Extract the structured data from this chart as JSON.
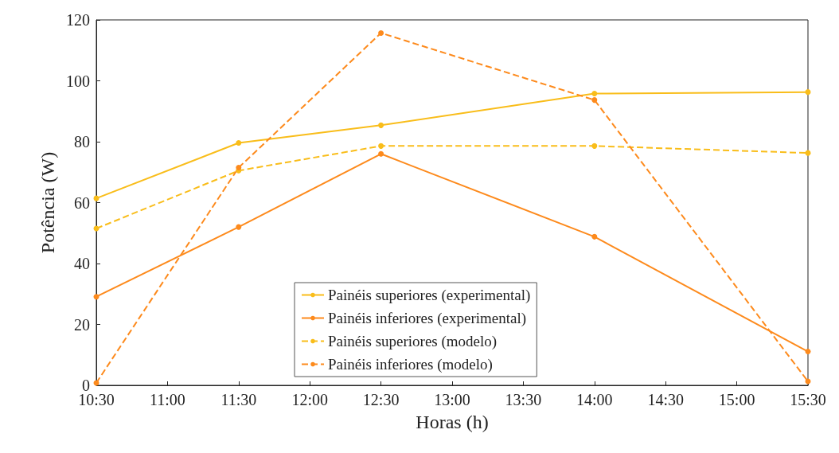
{
  "chart_data": {
    "type": "line",
    "xlabel": "Horas (h)",
    "ylabel": "Potência (W)",
    "x": [
      10.5,
      11.5,
      12.5,
      14,
      15.5
    ],
    "series": [
      {
        "name": "Painéis superiores (experimental)",
        "color": "#f9bd1a",
        "line_style": "solid",
        "values": [
          61.4,
          79.6,
          85.4,
          95.8,
          96.3
        ]
      },
      {
        "name": "Painéis inferiores (experimental)",
        "color": "#fd8a1c",
        "line_style": "solid",
        "values": [
          29.1,
          52.0,
          76.0,
          48.8,
          11.1
        ]
      },
      {
        "name": "Painéis superiores (modelo)",
        "color": "#f9bd1a",
        "line_style": "dashed",
        "values": [
          51.5,
          70.5,
          78.6,
          78.6,
          76.3
        ]
      },
      {
        "name": "Painéis inferiores (modelo)",
        "color": "#fd8a1c",
        "line_style": "dashed",
        "values": [
          0.8,
          71.5,
          115.7,
          93.7,
          1.3
        ]
      }
    ],
    "xlim": [
      10.5,
      15.5
    ],
    "xticks": [
      {
        "value": 10.5,
        "label": "10:30"
      },
      {
        "value": 11,
        "label": "11:00"
      },
      {
        "value": 11.5,
        "label": "11:30"
      },
      {
        "value": 12,
        "label": "12:00"
      },
      {
        "value": 12.5,
        "label": "12:30"
      },
      {
        "value": 13,
        "label": "13:00"
      },
      {
        "value": 13.5,
        "label": "13:30"
      },
      {
        "value": 14,
        "label": "14:00"
      },
      {
        "value": 14.5,
        "label": "14:30"
      },
      {
        "value": 15,
        "label": "15:00"
      },
      {
        "value": 15.5,
        "label": "15:30"
      }
    ],
    "ylim": [
      0,
      120
    ],
    "yticks": [
      0,
      20,
      40,
      60,
      80,
      100,
      120
    ],
    "grid": false,
    "legend": "bottom",
    "marker": "circle"
  }
}
